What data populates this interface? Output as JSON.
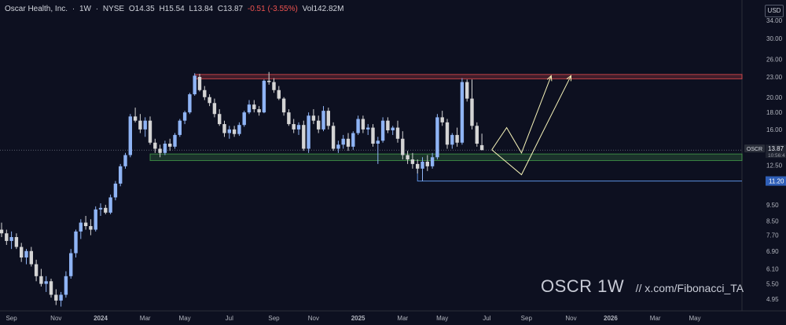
{
  "header": {
    "symbol_name": "Oscar Health, Inc.",
    "interval": "1W",
    "exchange": "NYSE",
    "open": "O14.35",
    "high": "H15.54",
    "low": "L13.84",
    "close": "C13.87",
    "change": "-0.51 (-3.55%)",
    "volume": "Vol142.82M"
  },
  "currency_button": "USD",
  "watermark": {
    "title": "OSCR 1W",
    "handle": "//  x.com/Fibonacci_TA"
  },
  "colors": {
    "background": "#0d1020",
    "bull": "#8fb4f5",
    "bear": "#d4d4d4",
    "resistance": "#ff5252",
    "support": "#4caf50",
    "projection": "#f5f2b8",
    "level_line": "#5b8fe0"
  },
  "chart_data": {
    "type": "candlestick",
    "title": "",
    "y_scale": "log",
    "ylim": [
      4.6,
      36
    ],
    "y_ticks": [
      {
        "value": 34.0,
        "label": "34.00"
      },
      {
        "value": 30.0,
        "label": "30.00"
      },
      {
        "value": 26.0,
        "label": "26.00"
      },
      {
        "value": 23.0,
        "label": "23.00"
      },
      {
        "value": 20.0,
        "label": "20.00"
      },
      {
        "value": 18.0,
        "label": "18.00"
      },
      {
        "value": 16.0,
        "label": "16.00"
      },
      {
        "value": 12.5,
        "label": "12.50"
      },
      {
        "value": 9.5,
        "label": "9.50"
      },
      {
        "value": 8.5,
        "label": "8.50"
      },
      {
        "value": 7.7,
        "label": "7.70"
      },
      {
        "value": 6.9,
        "label": "6.90"
      },
      {
        "value": 6.1,
        "label": "6.10"
      },
      {
        "value": 5.5,
        "label": "5.50"
      },
      {
        "value": 4.95,
        "label": "4.95"
      }
    ],
    "x_labels": [
      {
        "week": 2,
        "label": "Sep"
      },
      {
        "week": 11,
        "label": "Nov"
      },
      {
        "week": 20,
        "label": "2024"
      },
      {
        "week": 29,
        "label": "Mar"
      },
      {
        "week": 37,
        "label": "May"
      },
      {
        "week": 46,
        "label": "Jul"
      },
      {
        "week": 55,
        "label": "Sep"
      },
      {
        "week": 63,
        "label": "Nov"
      },
      {
        "week": 72,
        "label": "2025"
      },
      {
        "week": 81,
        "label": "Mar"
      },
      {
        "week": 89,
        "label": "May"
      },
      {
        "week": 98,
        "label": "Jul"
      },
      {
        "week": 106,
        "label": "Sep"
      },
      {
        "week": 115,
        "label": "Nov"
      },
      {
        "week": 123,
        "label": "2026"
      },
      {
        "week": 132,
        "label": "Mar"
      },
      {
        "week": 140,
        "label": "May"
      }
    ],
    "candles": [
      [
        8.0,
        8.4,
        7.6,
        7.8
      ],
      [
        7.8,
        8.0,
        7.2,
        7.4
      ],
      [
        7.4,
        7.9,
        7.0,
        7.6
      ],
      [
        7.6,
        7.8,
        7.0,
        7.1
      ],
      [
        7.1,
        7.3,
        6.4,
        6.6
      ],
      [
        6.6,
        7.0,
        6.3,
        6.9
      ],
      [
        6.9,
        7.1,
        6.2,
        6.3
      ],
      [
        6.3,
        6.5,
        5.6,
        5.8
      ],
      [
        5.8,
        6.1,
        5.4,
        5.5
      ],
      [
        5.5,
        5.8,
        5.2,
        5.6
      ],
      [
        5.6,
        5.7,
        5.0,
        5.1
      ],
      [
        5.1,
        5.3,
        4.75,
        4.9
      ],
      [
        4.9,
        5.2,
        4.7,
        5.1
      ],
      [
        5.1,
        6.0,
        5.0,
        5.8
      ],
      [
        5.8,
        7.0,
        5.7,
        6.8
      ],
      [
        6.8,
        8.0,
        6.6,
        7.9
      ],
      [
        7.9,
        8.6,
        7.5,
        8.4
      ],
      [
        8.4,
        8.8,
        8.0,
        8.2
      ],
      [
        8.2,
        8.6,
        7.7,
        8.0
      ],
      [
        8.0,
        9.4,
        7.9,
        9.2
      ],
      [
        9.2,
        9.6,
        8.8,
        9.3
      ],
      [
        9.3,
        9.5,
        8.9,
        9.0
      ],
      [
        9.0,
        10.2,
        8.9,
        10.0
      ],
      [
        10.0,
        11.2,
        9.8,
        11.0
      ],
      [
        11.0,
        12.6,
        10.8,
        12.4
      ],
      [
        12.4,
        13.6,
        12.2,
        13.4
      ],
      [
        13.4,
        17.8,
        13.2,
        17.5
      ],
      [
        17.5,
        18.6,
        16.8,
        17.0
      ],
      [
        17.0,
        17.8,
        15.6,
        16.0
      ],
      [
        16.0,
        17.4,
        15.2,
        17.0
      ],
      [
        17.0,
        17.5,
        14.4,
        14.6
      ],
      [
        14.6,
        15.0,
        13.6,
        14.0
      ],
      [
        14.0,
        14.4,
        13.2,
        13.6
      ],
      [
        13.6,
        14.8,
        13.4,
        14.5
      ],
      [
        14.5,
        15.0,
        13.8,
        14.2
      ],
      [
        14.2,
        15.6,
        14.0,
        15.4
      ],
      [
        15.4,
        17.2,
        15.2,
        17.0
      ],
      [
        17.0,
        18.2,
        16.6,
        18.0
      ],
      [
        18.0,
        20.6,
        17.8,
        20.4
      ],
      [
        20.4,
        23.6,
        20.2,
        23.2
      ],
      [
        23.0,
        23.5,
        20.8,
        21.0
      ],
      [
        21.0,
        21.6,
        19.6,
        20.0
      ],
      [
        20.0,
        20.4,
        18.8,
        19.2
      ],
      [
        19.2,
        19.8,
        17.4,
        17.8
      ],
      [
        17.8,
        18.4,
        16.4,
        16.6
      ],
      [
        16.6,
        17.0,
        15.2,
        15.6
      ],
      [
        15.6,
        16.4,
        15.0,
        16.0
      ],
      [
        16.0,
        16.4,
        15.2,
        15.5
      ],
      [
        15.5,
        16.8,
        15.3,
        16.5
      ],
      [
        16.5,
        18.2,
        16.3,
        18.0
      ],
      [
        18.0,
        19.6,
        17.8,
        19.0
      ],
      [
        19.0,
        19.6,
        18.0,
        18.4
      ],
      [
        18.4,
        18.8,
        17.6,
        18.0
      ],
      [
        18.0,
        22.6,
        17.9,
        22.4
      ],
      [
        22.4,
        23.8,
        21.8,
        22.2
      ],
      [
        22.2,
        22.8,
        20.6,
        21.0
      ],
      [
        21.0,
        21.6,
        19.6,
        19.8
      ],
      [
        19.8,
        20.0,
        17.6,
        18.0
      ],
      [
        18.0,
        18.4,
        16.4,
        16.6
      ],
      [
        16.6,
        17.2,
        15.6,
        16.0
      ],
      [
        16.0,
        16.8,
        15.4,
        16.5
      ],
      [
        16.5,
        17.0,
        13.8,
        14.0
      ],
      [
        14.0,
        18.0,
        13.6,
        17.6
      ],
      [
        17.6,
        18.4,
        16.6,
        17.0
      ],
      [
        17.0,
        17.6,
        15.6,
        16.0
      ],
      [
        16.0,
        18.8,
        15.8,
        18.2
      ],
      [
        18.2,
        18.6,
        16.0,
        16.4
      ],
      [
        16.4,
        16.8,
        13.8,
        14.0
      ],
      [
        14.0,
        14.8,
        13.6,
        14.4
      ],
      [
        14.4,
        15.4,
        14.0,
        15.0
      ],
      [
        15.0,
        15.6,
        13.8,
        14.2
      ],
      [
        14.2,
        15.8,
        13.9,
        15.6
      ],
      [
        15.6,
        17.6,
        15.4,
        17.2
      ],
      [
        17.2,
        17.6,
        15.6,
        16.0
      ],
      [
        16.0,
        16.6,
        15.4,
        16.2
      ],
      [
        16.2,
        16.6,
        14.2,
        14.5
      ],
      [
        14.5,
        15.2,
        12.6,
        14.8
      ],
      [
        14.8,
        17.4,
        14.6,
        17.0
      ],
      [
        17.0,
        17.4,
        15.6,
        15.9
      ],
      [
        15.9,
        16.4,
        15.4,
        16.2
      ],
      [
        16.2,
        17.0,
        14.6,
        15.0
      ],
      [
        15.0,
        15.8,
        13.0,
        13.4
      ],
      [
        13.4,
        13.8,
        12.6,
        13.0
      ],
      [
        13.0,
        13.6,
        12.2,
        12.6
      ],
      [
        12.6,
        13.0,
        11.8,
        12.2
      ],
      [
        12.2,
        13.2,
        11.2,
        12.8
      ],
      [
        12.8,
        13.4,
        12.0,
        12.4
      ],
      [
        12.4,
        13.6,
        12.2,
        13.2
      ],
      [
        13.2,
        17.8,
        13.0,
        17.4
      ],
      [
        17.4,
        18.2,
        16.4,
        16.8
      ],
      [
        16.8,
        17.2,
        14.0,
        14.4
      ],
      [
        14.4,
        15.6,
        14.0,
        15.4
      ],
      [
        15.4,
        16.2,
        14.2,
        14.6
      ],
      [
        14.6,
        22.8,
        14.4,
        22.2
      ],
      [
        22.2,
        22.6,
        19.4,
        19.8
      ],
      [
        19.8,
        22.6,
        16.0,
        16.4
      ],
      [
        16.4,
        16.8,
        14.2,
        14.5
      ],
      [
        14.35,
        15.54,
        13.84,
        13.87
      ]
    ],
    "levels": [
      {
        "name": "resistance-zone",
        "low": 22.7,
        "high": 23.4,
        "from_week": 39
      },
      {
        "name": "support-zone",
        "low": 12.9,
        "high": 13.5,
        "from_week": 30
      },
      {
        "name": "horizontal-level",
        "value": 11.2,
        "from_week": 84
      }
    ],
    "projections": [
      [
        [
          99,
          13.9
        ],
        [
          102,
          16.2
        ],
        [
          105,
          13.6
        ],
        [
          111,
          23.2
        ]
      ],
      [
        [
          99,
          13.9
        ],
        [
          105,
          11.7
        ],
        [
          109,
          15.4
        ],
        [
          115,
          23.2
        ]
      ]
    ],
    "price_labels": [
      {
        "label": "OSCR",
        "value_text": "13.87",
        "timer": "10:56:4",
        "value": 13.87
      },
      {
        "value_text": "11.20",
        "value": 11.2
      }
    ]
  }
}
